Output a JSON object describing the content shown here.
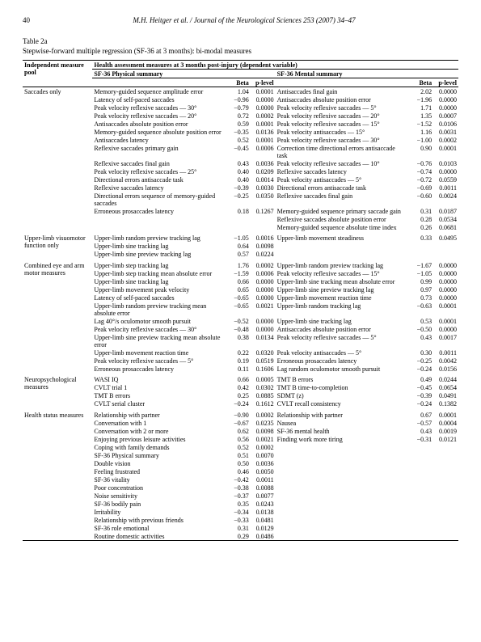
{
  "page": {
    "number": "40",
    "running": "M.H. Heitger et al. / Journal of the Neurological Sciences 253 (2007) 34–47"
  },
  "caption": {
    "label": "Table 2a",
    "sub": "Stepwise-forward multiple regression (SF-36 at 3 months): bi-modal measures"
  },
  "headers": {
    "pool": "Independent measure pool",
    "dep": "Health assessment measures at 3 months post-injury (dependent variable)",
    "phys": "SF-36 Physical summary",
    "ment": "SF-36 Mental summary",
    "beta": "Beta",
    "p": "p-level"
  },
  "sections": [
    {
      "pool": "Saccades only",
      "rows": [
        {
          "l": "Memory-guided sequence amplitude error",
          "lb": "1.04",
          "lp": "0.0001",
          "r": "Antisaccades final gain",
          "rb": "2.02",
          "rp": "0.0000"
        },
        {
          "l": "Latency of self-paced saccades",
          "lb": "−0.96",
          "lp": "0.0000",
          "r": "Antisaccades absolute position error",
          "rb": "−1.96",
          "rp": "0.0000"
        },
        {
          "l": "Peak velocity reflexive saccades — 30°",
          "lb": "−0.79",
          "lp": "0.0000",
          "r": "Peak velocity reflexive saccades — 5°",
          "rb": "1.71",
          "rp": "0.0000"
        },
        {
          "l": "Peak velocity reflexive saccades — 20°",
          "lb": "0.72",
          "lp": "0.0002",
          "r": "Peak velocity reflexive saccades — 20°",
          "rb": "1.35",
          "rp": "0.0007"
        },
        {
          "l": "Antisaccades absolute position error",
          "lb": "0.59",
          "lp": "0.0001",
          "r": "Peak velocity reflexive saccades — 15°",
          "rb": "−1.52",
          "rp": "0.0106"
        },
        {
          "l": "Memory-guided sequence absolute position error",
          "lb": "−0.35",
          "lp": "0.0136",
          "r": "Peak velocity antisaccades — 15°",
          "rb": "1.16",
          "rp": "0.0031"
        },
        {
          "l": "Antisaccades latency",
          "lb": "0.52",
          "lp": "0.0001",
          "r": "Peak velocity reflexive saccades — 30°",
          "rb": "−1.00",
          "rp": "0.0002"
        },
        {
          "l": "Reflexive saccades primary gain",
          "lb": "−0.45",
          "lp": "0.0006",
          "r": "Correction time directional errors antisaccade task",
          "rb": "0.90",
          "rp": "0.0001"
        },
        {
          "l": "Reflexive saccades final gain",
          "lb": "0.43",
          "lp": "0.0036",
          "r": "Peak velocity reflexive saccades — 10°",
          "rb": "−0.76",
          "rp": "0.0103"
        },
        {
          "l": "Peak velocity reflexive saccades — 25°",
          "lb": "0.40",
          "lp": "0.0209",
          "r": "Reflexive saccades latency",
          "rb": "−0.74",
          "rp": "0.0000"
        },
        {
          "l": "Directional errors antisaccade task",
          "lb": "0.40",
          "lp": "0.0014",
          "r": "Peak velocity antisaccades — 5°",
          "rb": "−0.72",
          "rp": "0.0559"
        },
        {
          "l": "Reflexive saccades latency",
          "lb": "−0.39",
          "lp": "0.0030",
          "r": "Directional errors antisaccade task",
          "rb": "−0.69",
          "rp": "0.0011"
        },
        {
          "l": "Directional errors sequence of memory-guided saccades",
          "lb": "−0.25",
          "lp": "0.0350",
          "r": "Reflexive saccades final gain",
          "rb": "−0.60",
          "rp": "0.0024"
        },
        {
          "l": "Erroneous prosaccades latency",
          "lb": "0.18",
          "lp": "0.1267",
          "r": "Memory-guided sequence primary saccade gain",
          "rb": "0.31",
          "rp": "0.0187"
        },
        {
          "l": "",
          "lb": "",
          "lp": "",
          "r": "Reflexive saccades absolute position error",
          "rb": "0.28",
          "rp": "0.0534"
        },
        {
          "l": "",
          "lb": "",
          "lp": "",
          "r": "Memory-guided sequence absolute time index",
          "rb": "0.26",
          "rp": "0.0681"
        }
      ]
    },
    {
      "pool": "Upper-limb visuomotor function only",
      "rows": [
        {
          "l": "Upper-limb random preview tracking lag",
          "lb": "−1.05",
          "lp": "0.0016",
          "r": "Upper-limb movement steadiness",
          "rb": "0.33",
          "rp": "0.0495"
        },
        {
          "l": "Upper-limb sine tracking lag",
          "lb": "0.64",
          "lp": "0.0098",
          "r": "",
          "rb": "",
          "rp": ""
        },
        {
          "l": "Upper-limb sine preview tracking lag",
          "lb": "0.57",
          "lp": "0.0224",
          "r": "",
          "rb": "",
          "rp": ""
        }
      ]
    },
    {
      "pool": "Combined eye and arm motor measures",
      "rows": [
        {
          "l": "Upper-limb step tracking lag",
          "lb": "1.76",
          "lp": "0.0002",
          "r": "Upper-limb random preview tracking lag",
          "rb": "−1.67",
          "rp": "0.0000"
        },
        {
          "l": "Upper-limb step tracking mean absolute error",
          "lb": "−1.59",
          "lp": "0.0006",
          "r": "Peak velocity reflexive saccades — 15°",
          "rb": "−1.05",
          "rp": "0.0000"
        },
        {
          "l": "Upper-limb sine tracking lag",
          "lb": "0.66",
          "lp": "0.0000",
          "r": "Upper-limb sine tracking mean absolute error",
          "rb": "0.99",
          "rp": "0.0000"
        },
        {
          "l": "Upper-limb movement peak velocity",
          "lb": "0.65",
          "lp": "0.0000",
          "r": "Upper-limb sine preview tracking lag",
          "rb": "0.97",
          "rp": "0.0000"
        },
        {
          "l": "Latency of self-paced saccades",
          "lb": "−0.65",
          "lp": "0.0000",
          "r": "Upper-limb movement reaction time",
          "rb": "0.73",
          "rp": "0.0000"
        },
        {
          "l": "Upper-limb random preview tracking mean absolute error",
          "lb": "−0.65",
          "lp": "0.0021",
          "r": "Upper-limb random tracking lag",
          "rb": "−0.63",
          "rp": "0.0001"
        },
        {
          "l": "Lag 40°/s oculomotor smooth pursuit",
          "lb": "−0.52",
          "lp": "0.0000",
          "r": "Upper-limb sine tracking lag",
          "rb": "0.53",
          "rp": "0.0001"
        },
        {
          "l": "Peak velocity reflexive saccades — 30°",
          "lb": "−0.48",
          "lp": "0.0000",
          "r": "Antisaccades absolute position error",
          "rb": "−0.50",
          "rp": "0.0000"
        },
        {
          "l": "Upper-limb sine preview tracking mean absolute error",
          "lb": "0.38",
          "lp": "0.0134",
          "r": "Peak velocity reflexive saccades — 5°",
          "rb": "0.43",
          "rp": "0.0017"
        },
        {
          "l": "Upper-limb movement reaction time",
          "lb": "0.22",
          "lp": "0.0320",
          "r": "Peak velocity antisaccades — 5°",
          "rb": "0.30",
          "rp": "0.0011"
        },
        {
          "l": "Peak velocity reflexive saccades — 5°",
          "lb": "0.19",
          "lp": "0.0519",
          "r": "Erroneous prosaccades latency",
          "rb": "−0.25",
          "rp": "0.0042"
        },
        {
          "l": "Erroneous prosaccades latency",
          "lb": "0.11",
          "lp": "0.1606",
          "r": "Lag random oculomotor smooth pursuit",
          "rb": "−0.24",
          "rp": "0.0156"
        }
      ]
    },
    {
      "pool": "Neuropsychological measures",
      "rows": [
        {
          "l": "WASI IQ",
          "lb": "0.66",
          "lp": "0.0005",
          "r": "TMT B errors",
          "rb": "0.49",
          "rp": "0.0244"
        },
        {
          "l": "CVLT trial 1",
          "lb": "0.42",
          "lp": "0.0302",
          "r": "TMT B time-to-completion",
          "rb": "−0.45",
          "rp": "0.0654"
        },
        {
          "l": "TMT B errors",
          "lb": "0.25",
          "lp": "0.0885",
          "r": "SDMT (z)",
          "rb": "−0.39",
          "rp": "0.0491"
        },
        {
          "l": "CVLT serial cluster",
          "lb": "−0.24",
          "lp": "0.1612",
          "r": "CVLT recall consistency",
          "rb": "−0.24",
          "rp": "0.1382"
        }
      ]
    },
    {
      "pool": "Health status measures",
      "rows": [
        {
          "l": "Relationship with partner",
          "lb": "−0.90",
          "lp": "0.0002",
          "r": "Relationship with partner",
          "rb": "0.67",
          "rp": "0.0001"
        },
        {
          "l": "Conversation with 1",
          "lb": "−0.67",
          "lp": "0.0235",
          "r": "Nausea",
          "rb": "−0.57",
          "rp": "0.0004"
        },
        {
          "l": "Conversation with 2 or more",
          "lb": "0.62",
          "lp": "0.0098",
          "r": "SF-36 mental health",
          "rb": "0.43",
          "rp": "0.0019"
        },
        {
          "l": "Enjoying previous leisure activities",
          "lb": "0.56",
          "lp": "0.0021",
          "r": "Finding work more tiring",
          "rb": "−0.31",
          "rp": "0.0121"
        },
        {
          "l": "Coping with family demands",
          "lb": "0.52",
          "lp": "0.0002",
          "r": "",
          "rb": "",
          "rp": ""
        },
        {
          "l": "SF-36 Physical summary",
          "lb": "0.51",
          "lp": "0.0070",
          "r": "",
          "rb": "",
          "rp": ""
        },
        {
          "l": "Double vision",
          "lb": "0.50",
          "lp": "0.0036",
          "r": "",
          "rb": "",
          "rp": ""
        },
        {
          "l": "Feeling frustrated",
          "lb": "0.46",
          "lp": "0.0050",
          "r": "",
          "rb": "",
          "rp": ""
        },
        {
          "l": "SF-36 vitality",
          "lb": "−0.42",
          "lp": "0.0011",
          "r": "",
          "rb": "",
          "rp": ""
        },
        {
          "l": "Poor concentration",
          "lb": "−0.38",
          "lp": "0.0088",
          "r": "",
          "rb": "",
          "rp": ""
        },
        {
          "l": "Noise sensitivity",
          "lb": "−0.37",
          "lp": "0.0077",
          "r": "",
          "rb": "",
          "rp": ""
        },
        {
          "l": "SF-36 bodily pain",
          "lb": "0.35",
          "lp": "0.0243",
          "r": "",
          "rb": "",
          "rp": ""
        },
        {
          "l": "Irritability",
          "lb": "−0.34",
          "lp": "0.0138",
          "r": "",
          "rb": "",
          "rp": ""
        },
        {
          "l": "Relationship with previous friends",
          "lb": "−0.33",
          "lp": "0.0481",
          "r": "",
          "rb": "",
          "rp": ""
        },
        {
          "l": "SF-36 role emotional",
          "lb": "0.31",
          "lp": "0.0129",
          "r": "",
          "rb": "",
          "rp": ""
        },
        {
          "l": "Routine domestic activities",
          "lb": "0.29",
          "lp": "0.0486",
          "r": "",
          "rb": "",
          "rp": ""
        }
      ]
    }
  ]
}
